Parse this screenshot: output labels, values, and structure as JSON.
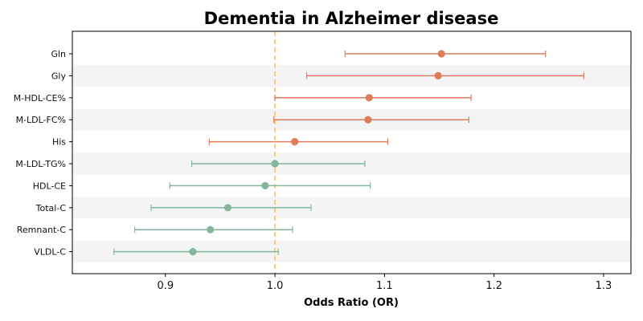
{
  "chart_data": {
    "type": "forest",
    "title": "Dementia in Alzheimer disease",
    "xlabel": "Odds Ratio (OR)",
    "ylabel": "",
    "xlim": [
      0.815,
      1.325
    ],
    "xticks": [
      0.9,
      1.0,
      1.1,
      1.2,
      1.3
    ],
    "xtick_labels": [
      "0.9",
      "1.0",
      "1.1",
      "1.2",
      "1.3"
    ],
    "reference_line": 1.0,
    "grid": false,
    "colors": {
      "positive": "#e07b5a",
      "negative": "#85b69a",
      "reference": "#f5c87a",
      "band": "#f4f4f4"
    },
    "rows": [
      {
        "label": "Gln",
        "or": 1.152,
        "lo": 1.064,
        "hi": 1.247,
        "group": "positive"
      },
      {
        "label": "Gly",
        "or": 1.149,
        "lo": 1.029,
        "hi": 1.282,
        "group": "positive"
      },
      {
        "label": "M-HDL-CE%",
        "or": 1.086,
        "lo": 1.0,
        "hi": 1.179,
        "group": "positive"
      },
      {
        "label": "M-LDL-FC%",
        "or": 1.085,
        "lo": 0.999,
        "hi": 1.177,
        "group": "positive"
      },
      {
        "label": "His",
        "or": 1.018,
        "lo": 0.94,
        "hi": 1.103,
        "group": "positive"
      },
      {
        "label": "M-LDL-TG%",
        "or": 1.0,
        "lo": 0.924,
        "hi": 1.082,
        "group": "negative"
      },
      {
        "label": "HDL-CE",
        "or": 0.991,
        "lo": 0.904,
        "hi": 1.087,
        "group": "negative"
      },
      {
        "label": "Total-C",
        "or": 0.957,
        "lo": 0.887,
        "hi": 1.033,
        "group": "negative"
      },
      {
        "label": "Remnant-C",
        "or": 0.941,
        "lo": 0.872,
        "hi": 1.016,
        "group": "negative"
      },
      {
        "label": "VLDL-C",
        "or": 0.925,
        "lo": 0.853,
        "hi": 1.003,
        "group": "negative"
      }
    ]
  }
}
